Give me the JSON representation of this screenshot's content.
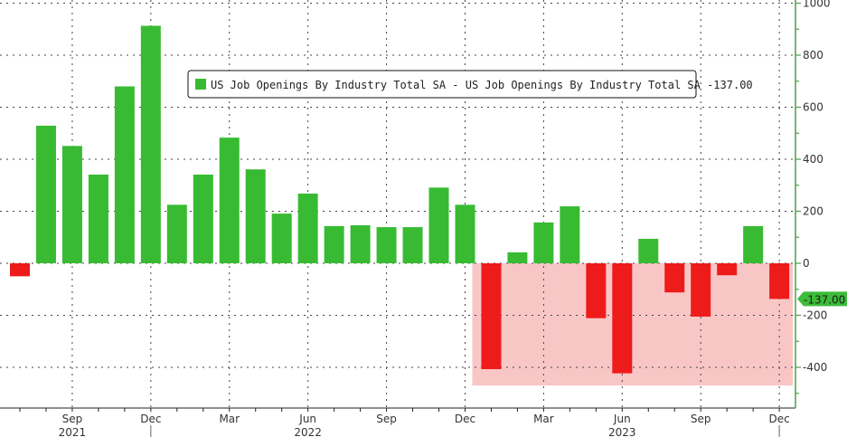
{
  "chart_data": {
    "type": "bar",
    "title": "",
    "legend": {
      "label": "US Job Openings By Industry Total SA - US Job Openings By Industry Total SA -137.00",
      "placement": "top-center"
    },
    "last_value_label": "-137.00",
    "x": [
      "2021-07",
      "2021-08",
      "2021-09",
      "2021-10",
      "2021-11",
      "2021-12",
      "2022-01",
      "2022-02",
      "2022-03",
      "2022-04",
      "2022-05",
      "2022-06",
      "2022-07",
      "2022-08",
      "2022-09",
      "2022-10",
      "2022-11",
      "2022-12",
      "2023-01",
      "2023-02",
      "2023-03",
      "2023-04",
      "2023-05",
      "2023-06",
      "2023-07",
      "2023-08",
      "2023-09",
      "2023-10",
      "2023-11",
      "2023-12"
    ],
    "values": [
      -50,
      529,
      451,
      341,
      680,
      913,
      225,
      341,
      483,
      361,
      191,
      268,
      143,
      146,
      139,
      139,
      291,
      225,
      -407,
      42,
      157,
      219,
      -211,
      -423,
      94,
      -112,
      -205,
      -46,
      143,
      -137
    ],
    "x_tick_labels": [
      {
        "index": 2,
        "label": "Sep"
      },
      {
        "index": 5,
        "label": "Dec"
      },
      {
        "index": 8,
        "label": "Mar"
      },
      {
        "index": 11,
        "label": "Jun"
      },
      {
        "index": 14,
        "label": "Sep"
      },
      {
        "index": 17,
        "label": "Dec"
      },
      {
        "index": 20,
        "label": "Mar"
      },
      {
        "index": 23,
        "label": "Jun"
      },
      {
        "index": 26,
        "label": "Sep"
      },
      {
        "index": 29,
        "label": "Dec"
      }
    ],
    "year_labels": [
      {
        "index": 2,
        "label": "2021"
      },
      {
        "index": 11,
        "label": "2022"
      },
      {
        "index": 23,
        "label": "2023"
      }
    ],
    "y_ticks": [
      1000,
      800,
      600,
      400,
      200,
      0,
      -200,
      -400
    ],
    "y_tick_labels": [
      "1000",
      "800",
      "600",
      "400",
      "200",
      "0",
      "-200",
      "-400"
    ],
    "ylim": [
      -556,
      1000
    ],
    "y_axis_side": "right",
    "grid": true,
    "shaded_region": {
      "x_from_index": 18,
      "x_to_index": 29,
      "y_from": 0,
      "y_to": -470
    },
    "colors": {
      "positive": "#38bb33",
      "negative": "#ee1b1b",
      "shade": "#f9c6c6",
      "axis": "#4aa046",
      "tag": "#3dbb3a"
    }
  }
}
